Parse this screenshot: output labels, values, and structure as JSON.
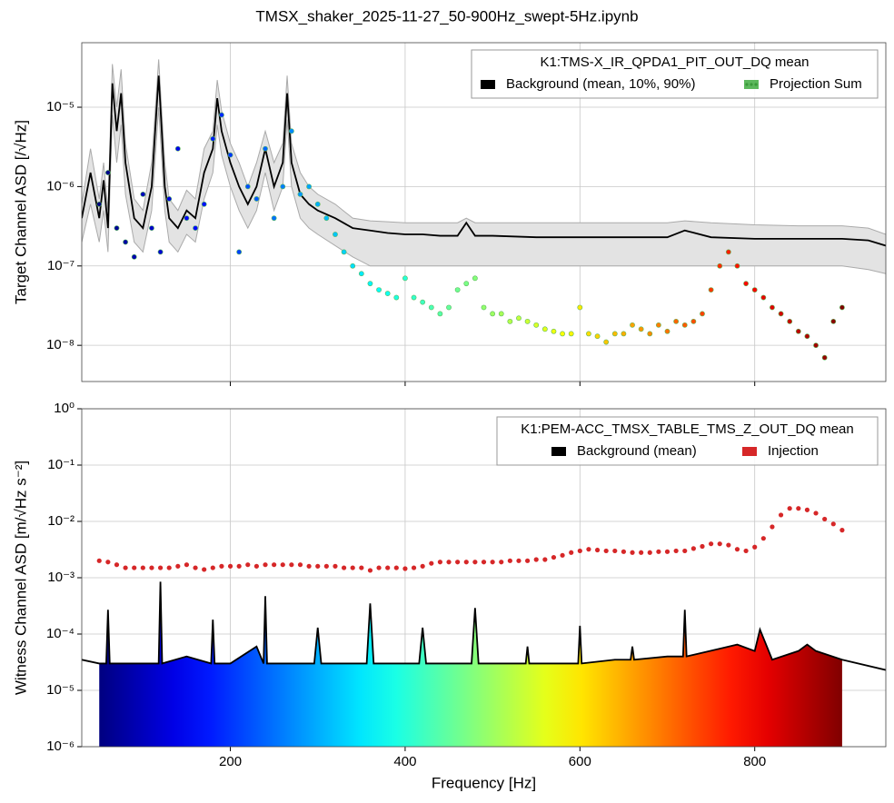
{
  "title": "TMSX_shaker_2025-11-27_50-900Hz_swept-5Hz.ipynb",
  "chart_data": [
    {
      "type": "line",
      "log_y": true,
      "grid": true,
      "legend": "upper right",
      "ylabel": "Target Channel ASD [/√Hz]",
      "legend_title": "K1:TMS-X_IR_QPDA1_PIT_OUT_DQ mean",
      "xlim": [
        30,
        950
      ],
      "ylim": [
        3.5e-09,
        6.5e-05
      ],
      "xticks": [
        200,
        400,
        600,
        800
      ],
      "yticks": [
        {
          "value": 1e-08,
          "label": "10⁻⁸"
        },
        {
          "value": 1e-07,
          "label": "10⁻⁷"
        },
        {
          "value": 1e-06,
          "label": "10⁻⁶"
        },
        {
          "value": 1e-05,
          "label": "10⁻⁵"
        }
      ],
      "series": [
        {
          "name": "Background (mean, 10%, 90%)",
          "color": "#000000",
          "band_color": "#e3e3e3",
          "x": [
            30,
            40,
            50,
            55,
            60,
            65,
            70,
            75,
            80,
            90,
            100,
            110,
            118,
            125,
            130,
            140,
            150,
            160,
            170,
            180,
            185,
            190,
            200,
            210,
            220,
            230,
            240,
            250,
            260,
            265,
            270,
            280,
            290,
            300,
            320,
            340,
            360,
            380,
            400,
            420,
            440,
            460,
            470,
            480,
            500,
            550,
            600,
            650,
            700,
            720,
            750,
            800,
            850,
            900,
            930,
            950
          ],
          "values": [
            4e-07,
            1.5e-06,
            4e-07,
            1.2e-06,
            3e-07,
            2e-05,
            5e-06,
            1.5e-05,
            2e-06,
            4e-07,
            3e-07,
            1e-06,
            2.5e-05,
            1e-06,
            4e-07,
            3e-07,
            5e-07,
            4e-07,
            1.5e-06,
            3e-06,
            1.3e-05,
            5e-06,
            2e-06,
            1e-06,
            6e-07,
            1e-06,
            3e-06,
            1e-06,
            2e-06,
            1.5e-05,
            2e-06,
            8e-07,
            6e-07,
            5e-07,
            4e-07,
            3e-07,
            2.8e-07,
            2.6e-07,
            2.5e-07,
            2.5e-07,
            2.4e-07,
            2.4e-07,
            3.5e-07,
            2.4e-07,
            2.4e-07,
            2.3e-07,
            2.3e-07,
            2.3e-07,
            2.3e-07,
            2.8e-07,
            2.3e-07,
            2.2e-07,
            2.2e-07,
            2.2e-07,
            2.1e-07,
            1.8e-07
          ],
          "band_low": [
            2e-07,
            6e-07,
            2e-07,
            5e-07,
            1.5e-07,
            8e-06,
            2e-06,
            6e-06,
            8e-07,
            2e-07,
            1.5e-07,
            5e-07,
            1e-05,
            5e-07,
            2e-07,
            1.5e-07,
            2.5e-07,
            2e-07,
            7e-07,
            1.5e-06,
            6e-06,
            2.5e-06,
            1e-06,
            5e-07,
            3e-07,
            5e-07,
            1.5e-06,
            5e-07,
            1e-06,
            7e-06,
            1e-06,
            4e-07,
            3e-07,
            2.5e-07,
            1.8e-07,
            1.3e-07,
            1e-07,
            1e-07,
            1e-07,
            1e-07,
            1e-07,
            1e-07,
            1e-07,
            1e-07,
            1e-07,
            1e-07,
            1e-07,
            1e-07,
            1e-07,
            1e-07,
            1e-07,
            1e-07,
            1e-07,
            1e-07,
            9e-08,
            8e-08
          ],
          "band_high": [
            6e-07,
            3e-06,
            7e-07,
            2e-06,
            5e-07,
            3.5e-05,
            1e-05,
            3e-05,
            3.5e-06,
            7e-07,
            5e-07,
            2e-06,
            4e-05,
            2e-06,
            7e-07,
            5e-07,
            9e-07,
            7e-07,
            3e-06,
            5e-06,
            2.2e-05,
            9e-06,
            3.5e-06,
            2e-06,
            1e-06,
            2e-06,
            5e-06,
            2e-06,
            3.5e-06,
            2.5e-05,
            3.5e-06,
            1.5e-06,
            1e-06,
            8e-07,
            6e-07,
            4e-07,
            3.7e-07,
            3.6e-07,
            3.5e-07,
            3.5e-07,
            3.5e-07,
            3.5e-07,
            4e-07,
            3.5e-07,
            3.5e-07,
            3.5e-07,
            3.5e-07,
            3.5e-07,
            3.5e-07,
            3.7e-07,
            3.5e-07,
            3.3e-07,
            3.2e-07,
            3.2e-07,
            3e-07,
            2.5e-07
          ]
        },
        {
          "name": "Projection Sum",
          "color": "#5cb85c",
          "marker": "scatter",
          "x": [
            50,
            60,
            70,
            80,
            90,
            100,
            110,
            120,
            130,
            140,
            150,
            160,
            170,
            180,
            190,
            200,
            210,
            220,
            230,
            240,
            250,
            260,
            270,
            280,
            290,
            300,
            310,
            320,
            330,
            340,
            350,
            360,
            370,
            380,
            390,
            400,
            410,
            420,
            430,
            440,
            450,
            460,
            470,
            480,
            490,
            500,
            510,
            520,
            530,
            540,
            550,
            560,
            570,
            580,
            590,
            600,
            610,
            620,
            630,
            640,
            650,
            660,
            670,
            680,
            690,
            700,
            710,
            720,
            730,
            740,
            750,
            760,
            770,
            780,
            790,
            800,
            810,
            820,
            830,
            840,
            850,
            860,
            870,
            880,
            890,
            900
          ],
          "values": [
            6e-07,
            1.5e-06,
            3e-07,
            2e-07,
            1.3e-07,
            8e-07,
            3e-07,
            1.5e-07,
            7e-07,
            3e-06,
            4e-07,
            3e-07,
            6e-07,
            4e-06,
            8e-06,
            2.5e-06,
            1.5e-07,
            1e-06,
            7e-07,
            3e-06,
            4e-07,
            1e-06,
            5e-06,
            8e-07,
            1e-06,
            6e-07,
            4e-07,
            2.5e-07,
            1.5e-07,
            1e-07,
            8e-08,
            6e-08,
            5e-08,
            4.5e-08,
            4e-08,
            7e-08,
            4e-08,
            3.5e-08,
            3e-08,
            2.5e-08,
            3e-08,
            5e-08,
            6e-08,
            7e-08,
            3e-08,
            2.5e-08,
            2.5e-08,
            2e-08,
            2.2e-08,
            2e-08,
            1.8e-08,
            1.6e-08,
            1.5e-08,
            1.4e-08,
            1.4e-08,
            3e-08,
            1.4e-08,
            1.3e-08,
            1.1e-08,
            1.4e-08,
            1.4e-08,
            1.8e-08,
            1.6e-08,
            1.4e-08,
            1.8e-08,
            1.5e-08,
            2e-08,
            1.8e-08,
            2e-08,
            2.5e-08,
            5e-08,
            1e-07,
            1.5e-07,
            1e-07,
            6e-08,
            5e-08,
            4e-08,
            3e-08,
            2.5e-08,
            2e-08,
            1.5e-08,
            1.3e-08,
            1e-08,
            7e-09,
            2e-08,
            3e-08
          ]
        }
      ]
    },
    {
      "type": "line",
      "log_y": true,
      "grid": true,
      "legend": "upper right",
      "xlabel": "Frequency [Hz]",
      "ylabel": "Witness Channel ASD [m/√Hz s⁻²]",
      "legend_title": "K1:PEM-ACC_TMSX_TABLE_TMS_Z_OUT_DQ mean",
      "xlim": [
        30,
        950
      ],
      "ylim": [
        1e-06,
        1
      ],
      "xticks": [
        200,
        400,
        600,
        800
      ],
      "yticks": [
        {
          "value": 1e-06,
          "label": "10⁻⁶"
        },
        {
          "value": 1e-05,
          "label": "10⁻⁵"
        },
        {
          "value": 0.0001,
          "label": "10⁻⁴"
        },
        {
          "value": 0.001,
          "label": "10⁻³"
        },
        {
          "value": 0.01,
          "label": "10⁻²"
        },
        {
          "value": 0.1,
          "label": "10⁻¹"
        },
        {
          "value": 1,
          "label": "10⁰"
        }
      ],
      "series": [
        {
          "name": "Background (mean)",
          "color": "#000000",
          "x": [
            30,
            50,
            58,
            60,
            62,
            100,
            118,
            120,
            122,
            150,
            178,
            180,
            182,
            200,
            230,
            238,
            240,
            242,
            260,
            296,
            300,
            304,
            356,
            360,
            364,
            400,
            416,
            420,
            424,
            450,
            476,
            480,
            484,
            520,
            538,
            540,
            542,
            598,
            600,
            602,
            640,
            658,
            660,
            662,
            700,
            718,
            720,
            722,
            760,
            780,
            800,
            806,
            820,
            850,
            860,
            870,
            900,
            950
          ],
          "values": [
            3.5e-05,
            3e-05,
            3e-05,
            0.00027,
            3e-05,
            3e-05,
            3e-05,
            0.00085,
            3e-05,
            4e-05,
            3e-05,
            0.00018,
            3e-05,
            3e-05,
            6e-05,
            3e-05,
            0.00047,
            3e-05,
            3e-05,
            3e-05,
            0.00013,
            3e-05,
            3e-05,
            0.00035,
            3e-05,
            3e-05,
            3e-05,
            0.00013,
            3e-05,
            3e-05,
            3e-05,
            0.00029,
            3e-05,
            3e-05,
            3e-05,
            6e-05,
            3e-05,
            3e-05,
            0.00014,
            3e-05,
            3.5e-05,
            3.5e-05,
            6e-05,
            3.5e-05,
            4e-05,
            4e-05,
            0.00027,
            4e-05,
            5.5e-05,
            6.5e-05,
            5e-05,
            0.00012,
            3.5e-05,
            5e-05,
            6.5e-05,
            5e-05,
            3.5e-05,
            2.3e-05
          ]
        },
        {
          "name": "Injection",
          "color": "#d62728",
          "marker": "scatter",
          "x": [
            50,
            60,
            70,
            80,
            90,
            100,
            110,
            120,
            130,
            140,
            150,
            160,
            170,
            180,
            190,
            200,
            210,
            220,
            230,
            240,
            250,
            260,
            270,
            280,
            290,
            300,
            310,
            320,
            330,
            340,
            350,
            360,
            370,
            380,
            390,
            400,
            410,
            420,
            430,
            440,
            450,
            460,
            470,
            480,
            490,
            500,
            510,
            520,
            530,
            540,
            550,
            560,
            570,
            580,
            590,
            600,
            610,
            620,
            630,
            640,
            650,
            660,
            670,
            680,
            690,
            700,
            710,
            720,
            730,
            740,
            750,
            760,
            770,
            780,
            790,
            800,
            810,
            820,
            830,
            840,
            850,
            860,
            870,
            880,
            890,
            900
          ],
          "values": [
            0.002,
            0.0019,
            0.0017,
            0.0015,
            0.0015,
            0.0015,
            0.0015,
            0.0015,
            0.0015,
            0.0016,
            0.0017,
            0.0015,
            0.0014,
            0.0015,
            0.0016,
            0.0016,
            0.0016,
            0.0017,
            0.0016,
            0.0017,
            0.0017,
            0.0017,
            0.0017,
            0.0017,
            0.0016,
            0.0016,
            0.0016,
            0.0016,
            0.0015,
            0.0015,
            0.0015,
            0.00135,
            0.0015,
            0.0015,
            0.0015,
            0.00145,
            0.0015,
            0.0016,
            0.0018,
            0.0019,
            0.0019,
            0.0019,
            0.0019,
            0.0019,
            0.0019,
            0.0019,
            0.0019,
            0.002,
            0.002,
            0.002,
            0.0021,
            0.0021,
            0.0023,
            0.0025,
            0.0028,
            0.003,
            0.0032,
            0.0031,
            0.003,
            0.003,
            0.0029,
            0.0028,
            0.0028,
            0.0028,
            0.0029,
            0.0029,
            0.003,
            0.003,
            0.0033,
            0.0036,
            0.004,
            0.004,
            0.0038,
            0.0032,
            0.003,
            0.0035,
            0.005,
            0.008,
            0.013,
            0.017,
            0.017,
            0.016,
            0.014,
            0.011,
            0.009,
            0.007
          ]
        }
      ]
    }
  ]
}
